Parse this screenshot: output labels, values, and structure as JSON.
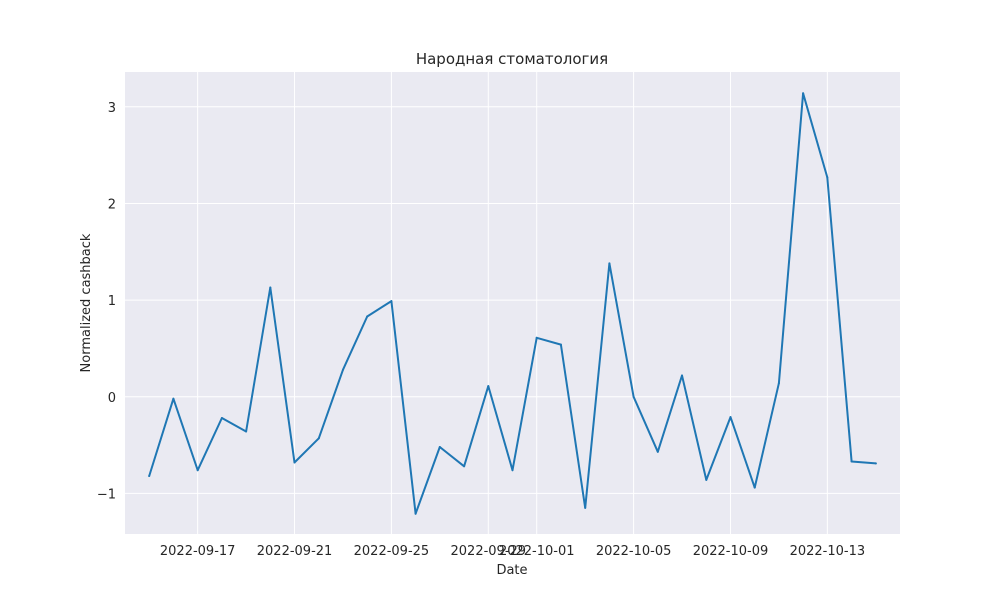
{
  "chart_data": {
    "type": "line",
    "title": "Народная стоматология",
    "xlabel": "Date",
    "ylabel": "Normalized cashback",
    "x_ticks": [
      "2022-09-17",
      "2022-09-21",
      "2022-09-25",
      "2022-09-29",
      "2022-10-01",
      "2022-10-05",
      "2022-10-09",
      "2022-10-13"
    ],
    "y_ticks": [
      "−1",
      "0",
      "1",
      "2",
      "3"
    ],
    "xlim": [
      "2022-09-14",
      "2022-10-16"
    ],
    "ylim": [
      -1.42,
      3.36
    ],
    "grid": true,
    "style": "seaborn-darkgrid",
    "colors": {
      "line": "#1f77b4",
      "plot_background": "#eaeaf2",
      "grid": "#ffffff"
    },
    "series": [
      {
        "x": [
          "2022-09-15",
          "2022-09-16",
          "2022-09-17",
          "2022-09-18",
          "2022-09-19",
          "2022-09-20",
          "2022-09-21",
          "2022-09-22",
          "2022-09-23",
          "2022-09-24",
          "2022-09-25",
          "2022-09-26",
          "2022-09-27",
          "2022-09-28",
          "2022-09-29",
          "2022-09-30",
          "2022-10-01",
          "2022-10-02",
          "2022-10-03",
          "2022-10-04",
          "2022-10-05",
          "2022-10-06",
          "2022-10-07",
          "2022-10-08",
          "2022-10-09",
          "2022-10-10",
          "2022-10-11",
          "2022-10-12",
          "2022-10-13",
          "2022-10-14",
          "2022-10-15"
        ],
        "values": [
          -0.82,
          -0.02,
          -0.76,
          -0.22,
          -0.36,
          1.13,
          -0.68,
          -0.43,
          0.28,
          0.83,
          0.99,
          -1.21,
          -0.52,
          -0.72,
          0.11,
          -0.76,
          0.61,
          0.54,
          -1.15,
          1.38,
          0.0,
          -0.57,
          0.22,
          -0.86,
          -0.21,
          -0.94,
          0.14,
          3.14,
          2.27,
          -0.67,
          -0.69
        ]
      }
    ]
  }
}
